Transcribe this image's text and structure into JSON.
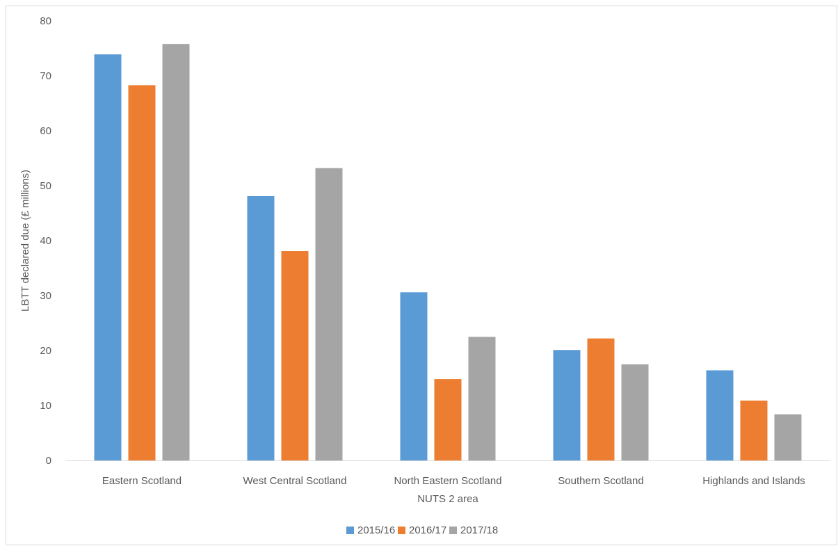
{
  "chart_data": {
    "type": "bar",
    "title": "",
    "xlabel": "NUTS 2 area",
    "ylabel": "LBTT declared due (£ millions)",
    "ylim": [
      0,
      80
    ],
    "yticks": [
      0,
      10,
      20,
      30,
      40,
      50,
      60,
      70,
      80
    ],
    "grid": false,
    "legend_position": "bottom",
    "categories": [
      "Eastern Scotland",
      "West Central Scotland",
      "North Eastern Scotland",
      "Southern Scotland",
      "Highlands and Islands"
    ],
    "series": [
      {
        "name": "2015/16",
        "color": "#5b9bd5",
        "values": [
          73.9,
          48.1,
          30.6,
          20.1,
          16.4
        ]
      },
      {
        "name": "2016/17",
        "color": "#ed7d31",
        "values": [
          68.3,
          38.1,
          14.8,
          22.2,
          10.9
        ]
      },
      {
        "name": "2017/18",
        "color": "#a5a5a5",
        "values": [
          75.8,
          53.2,
          22.5,
          17.5,
          8.4
        ]
      }
    ]
  }
}
